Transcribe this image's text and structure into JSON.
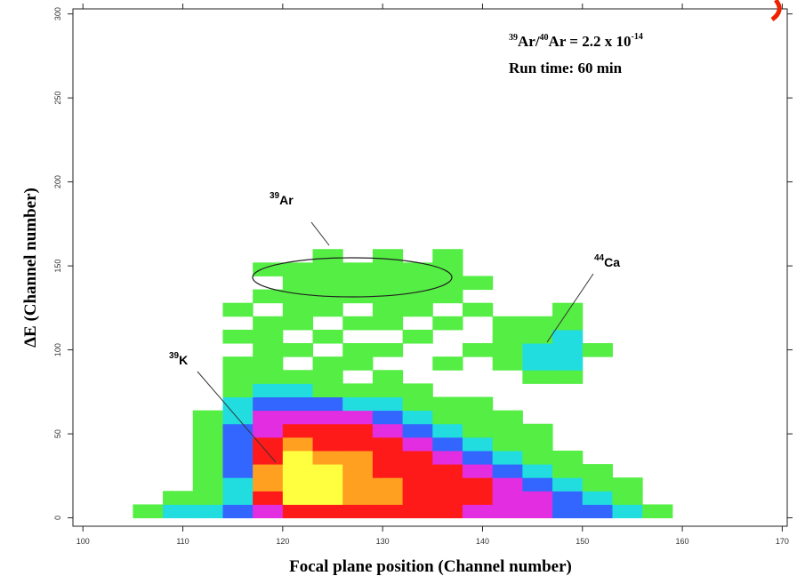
{
  "chart_data": {
    "type": "heatmap",
    "x_label": "Focal plane position (Channel number)",
    "y_label": "ΔE (Channel number)",
    "xlim": [
      99,
      170.5
    ],
    "ylim": [
      -5,
      303
    ],
    "xticks": [
      100,
      110,
      120,
      130,
      140,
      150,
      160,
      170
    ],
    "yticks": [
      0,
      50,
      100,
      150,
      200,
      250,
      300
    ],
    "colors": [
      "#55ee44",
      "#22dde0",
      "#3366ff",
      "#e22ee0",
      "#ff1a1a",
      "#ffa020",
      "#ffff40"
    ],
    "xbins": [
      105,
      108,
      111,
      114,
      117,
      120,
      123,
      126,
      129,
      132,
      135,
      138,
      141,
      144,
      147,
      150,
      153,
      156,
      159
    ],
    "ybins": [
      0,
      8,
      16,
      24,
      32,
      40,
      48,
      56,
      64,
      72,
      80,
      88,
      96,
      104,
      112,
      120,
      128,
      136,
      144,
      152,
      160
    ],
    "z": [
      [
        1,
        2,
        2,
        3,
        4,
        5,
        5,
        5,
        5,
        5,
        5,
        4,
        4,
        4,
        3,
        3,
        2,
        1
      ],
      [
        0,
        1,
        1,
        2,
        5,
        7,
        7,
        6,
        6,
        5,
        5,
        5,
        4,
        4,
        3,
        2,
        1,
        0
      ],
      [
        0,
        0,
        1,
        2,
        6,
        7,
        7,
        6,
        6,
        5,
        5,
        5,
        4,
        3,
        2,
        1,
        1,
        0
      ],
      [
        0,
        0,
        1,
        3,
        6,
        7,
        7,
        6,
        5,
        5,
        5,
        4,
        3,
        2,
        1,
        1,
        0,
        0
      ],
      [
        0,
        0,
        1,
        3,
        5,
        7,
        6,
        6,
        5,
        5,
        4,
        3,
        2,
        1,
        1,
        0,
        0,
        0
      ],
      [
        0,
        0,
        1,
        3,
        5,
        6,
        5,
        5,
        5,
        4,
        3,
        2,
        1,
        1,
        0,
        0,
        0,
        0
      ],
      [
        0,
        0,
        1,
        3,
        4,
        5,
        5,
        5,
        4,
        3,
        2,
        1,
        1,
        1,
        0,
        0,
        0,
        0
      ],
      [
        0,
        0,
        1,
        2,
        4,
        4,
        4,
        4,
        3,
        2,
        1,
        1,
        1,
        0,
        0,
        0,
        0,
        0
      ],
      [
        0,
        0,
        0,
        2,
        3,
        3,
        3,
        2,
        2,
        1,
        1,
        1,
        0,
        0,
        0,
        0,
        0,
        0
      ],
      [
        0,
        0,
        0,
        1,
        2,
        2,
        1,
        1,
        1,
        1,
        0,
        0,
        0,
        0,
        0,
        0,
        0,
        0
      ],
      [
        0,
        0,
        0,
        1,
        1,
        1,
        1,
        0,
        1,
        0,
        0,
        0,
        0,
        1,
        1,
        0,
        0,
        0
      ],
      [
        0,
        0,
        0,
        1,
        1,
        0,
        1,
        1,
        0,
        0,
        1,
        0,
        1,
        2,
        2,
        0,
        0,
        0
      ],
      [
        0,
        0,
        0,
        0,
        1,
        1,
        0,
        1,
        1,
        0,
        0,
        1,
        1,
        2,
        2,
        1,
        0,
        0
      ],
      [
        0,
        0,
        0,
        1,
        1,
        0,
        1,
        0,
        0,
        1,
        0,
        0,
        1,
        1,
        2,
        0,
        0,
        0
      ],
      [
        0,
        0,
        0,
        0,
        1,
        1,
        0,
        1,
        1,
        0,
        1,
        0,
        1,
        1,
        1,
        0,
        0,
        0
      ],
      [
        0,
        0,
        0,
        1,
        0,
        1,
        1,
        0,
        1,
        1,
        0,
        1,
        0,
        0,
        1,
        0,
        0,
        0
      ],
      [
        0,
        0,
        0,
        0,
        1,
        1,
        1,
        1,
        1,
        1,
        1,
        0,
        0,
        0,
        0,
        0,
        0,
        0
      ],
      [
        0,
        0,
        0,
        0,
        0,
        1,
        1,
        1,
        1,
        1,
        1,
        1,
        0,
        0,
        0,
        0,
        0,
        0
      ],
      [
        0,
        0,
        0,
        0,
        1,
        1,
        1,
        1,
        1,
        1,
        1,
        0,
        0,
        0,
        0,
        0,
        0,
        0
      ],
      [
        0,
        0,
        0,
        0,
        0,
        0,
        1,
        0,
        1,
        0,
        1,
        0,
        0,
        0,
        0,
        0,
        0,
        0
      ]
    ],
    "annotations": {
      "ratio": [
        "39",
        "Ar/",
        "40",
        "Ar = 2.2 x 10",
        "-14"
      ],
      "run_time": "Run time: 60 min",
      "ar": [
        "39",
        "Ar"
      ],
      "ca": [
        "44",
        "Ca"
      ],
      "k": [
        "39",
        "K"
      ]
    }
  }
}
